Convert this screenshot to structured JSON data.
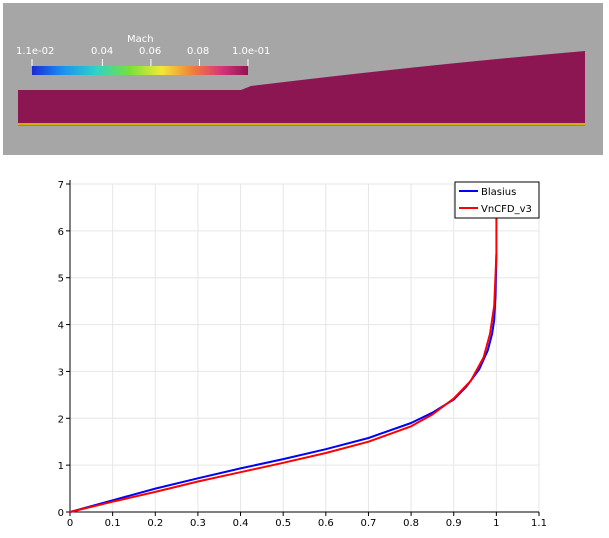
{
  "contour": {
    "colorbar": {
      "title": "Mach",
      "tick_labels": [
        "1.1e-02",
        "0.04",
        "0.06",
        "0.08",
        "1.0e-01"
      ],
      "tick_values": [
        0.011,
        0.04,
        0.06,
        0.08,
        0.1
      ],
      "range": [
        0.011,
        0.1
      ],
      "colormap": [
        "#1a2bd6",
        "#1b8ff0",
        "#2fd4c6",
        "#77e03a",
        "#f3e838",
        "#f07a3e",
        "#d4347a",
        "#8c1652"
      ]
    },
    "background_color": "#a6a6a6",
    "field_color": "#8c1652",
    "wall_color": "#c8b400"
  },
  "chart_data": {
    "type": "line",
    "title": "",
    "xlabel": "",
    "ylabel": "",
    "xlim": [
      0,
      1.1
    ],
    "ylim": [
      0,
      7
    ],
    "xticks": [
      0,
      0.1,
      0.2,
      0.3,
      0.4,
      0.5,
      0.6,
      0.7,
      0.8,
      0.9,
      1,
      1.1
    ],
    "xtick_labels": [
      "0",
      "0.1",
      "0.2",
      "0.3",
      "0.4",
      "0.5",
      "0.6",
      "0.7",
      "0.8",
      "0.9",
      "1",
      "1.1"
    ],
    "yticks": [
      0,
      1,
      2,
      3,
      4,
      5,
      6,
      7
    ],
    "ytick_labels": [
      "0",
      "1",
      "2",
      "3",
      "4",
      "5",
      "6",
      "7"
    ],
    "grid": true,
    "legend_position": "top-right",
    "series": [
      {
        "name": "Blasius",
        "color": "#0000ff",
        "x": [
          0,
          0.1,
          0.2,
          0.3,
          0.4,
          0.5,
          0.6,
          0.7,
          0.8,
          0.85,
          0.9,
          0.93,
          0.96,
          0.98,
          0.99,
          0.995,
          0.998,
          1.0
        ],
        "y": [
          0,
          0.25,
          0.5,
          0.72,
          0.93,
          1.13,
          1.34,
          1.58,
          1.9,
          2.12,
          2.4,
          2.68,
          3.05,
          3.45,
          3.8,
          4.1,
          4.6,
          5.5
        ]
      },
      {
        "name": "VnCFD_v3",
        "color": "#ff0000",
        "x": [
          0,
          0.1,
          0.2,
          0.3,
          0.4,
          0.5,
          0.6,
          0.7,
          0.8,
          0.85,
          0.9,
          0.94,
          0.97,
          0.985,
          0.995,
          1.0,
          1.0
        ],
        "y": [
          0,
          0.22,
          0.43,
          0.65,
          0.85,
          1.05,
          1.26,
          1.5,
          1.83,
          2.08,
          2.42,
          2.8,
          3.3,
          3.8,
          4.4,
          5.5,
          6.4
        ]
      }
    ]
  }
}
